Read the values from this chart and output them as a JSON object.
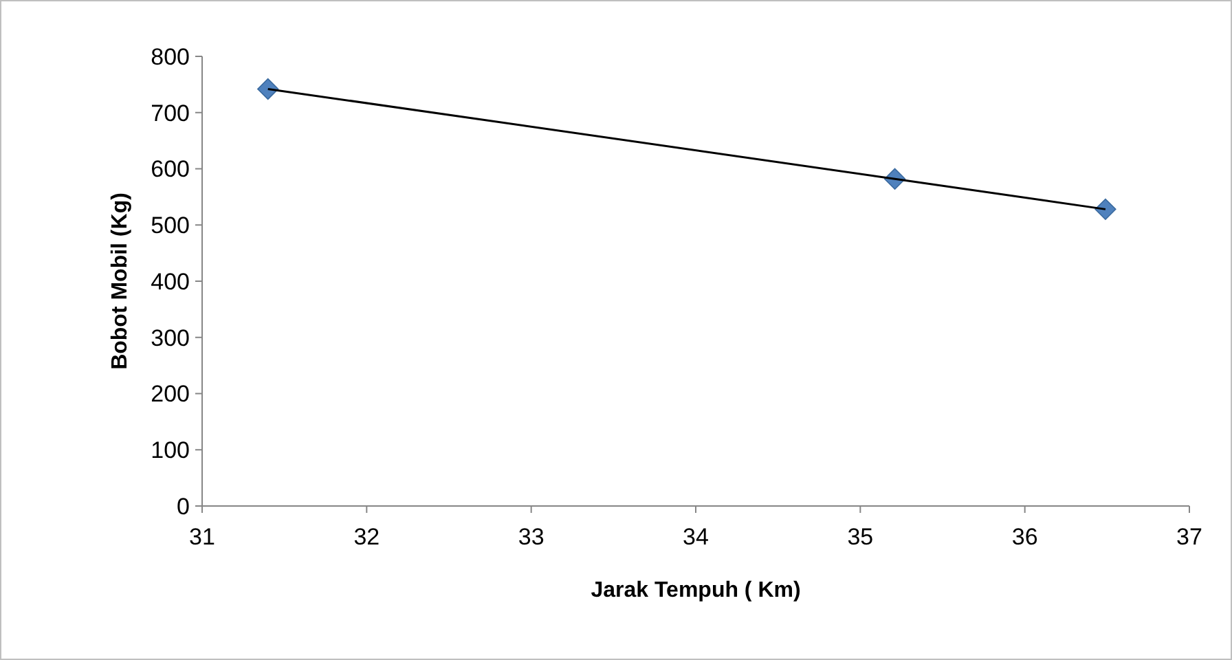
{
  "chart_data": {
    "type": "scatter",
    "xlabel": "Jarak Tempuh ( Km)",
    "ylabel": "Bobot Mobil (Kg)",
    "x": [
      31.4,
      35.21,
      36.49
    ],
    "series": [
      {
        "color": "#4f81bd",
        "values": [
          742,
          582,
          528
        ],
        "marker": "diamond"
      },
      {
        "type": "line",
        "color": "#000000",
        "x": [
          31.4,
          35.21,
          36.49
        ],
        "values": [
          742,
          582,
          528
        ],
        "marker": "none"
      }
    ],
    "xlim": [
      31,
      37
    ],
    "xticks": [
      31,
      32,
      33,
      34,
      35,
      36,
      37
    ],
    "ylim": [
      0,
      800
    ],
    "yticks": [
      0,
      100,
      200,
      300,
      400,
      500,
      600,
      700,
      800
    ],
    "grid": false
  }
}
